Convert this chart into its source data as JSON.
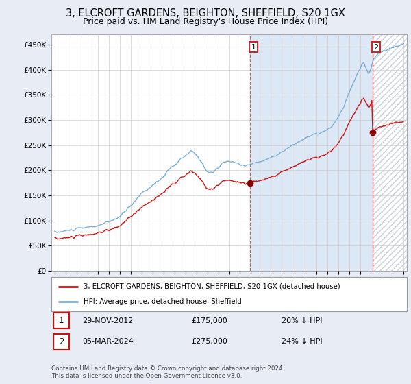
{
  "title": "3, ELCROFT GARDENS, BEIGHTON, SHEFFIELD, S20 1GX",
  "subtitle": "Price paid vs. HM Land Registry's House Price Index (HPI)",
  "title_fontsize": 10.5,
  "subtitle_fontsize": 9,
  "ylabel_ticks": [
    "£0",
    "£50K",
    "£100K",
    "£150K",
    "£200K",
    "£250K",
    "£300K",
    "£350K",
    "£400K",
    "£450K"
  ],
  "ytick_values": [
    0,
    50000,
    100000,
    150000,
    200000,
    250000,
    300000,
    350000,
    400000,
    450000
  ],
  "ylim": [
    0,
    470000
  ],
  "xlim_start": 1994.7,
  "xlim_end": 2027.3,
  "xticks": [
    1995,
    1996,
    1997,
    1998,
    1999,
    2000,
    2001,
    2002,
    2003,
    2004,
    2005,
    2006,
    2007,
    2008,
    2009,
    2010,
    2011,
    2012,
    2013,
    2014,
    2015,
    2016,
    2017,
    2018,
    2019,
    2020,
    2021,
    2022,
    2023,
    2024,
    2025,
    2026,
    2027
  ],
  "hpi_color": "#7aadd4",
  "price_color": "#cc1111",
  "vline_color": "#dd4444",
  "shade_color": "#dce8f5",
  "hatch_color": "#c8d0dc",
  "annotation_box_color": "#cc1111",
  "legend_house_label": "3, ELCROFT GARDENS, BEIGHTON, SHEFFIELD, S20 1GX (detached house)",
  "legend_hpi_label": "HPI: Average price, detached house, Sheffield",
  "note_1_label": "1",
  "note_1_date": "29-NOV-2012",
  "note_1_price": "£175,000",
  "note_1_hpi": "20% ↓ HPI",
  "note_2_label": "2",
  "note_2_date": "05-MAR-2024",
  "note_2_price": "£275,000",
  "note_2_hpi": "24% ↓ HPI",
  "copyright_text": "Contains HM Land Registry data © Crown copyright and database right 2024.\nThis data is licensed under the Open Government Licence v3.0.",
  "bg_color": "#e8edf5",
  "plot_bg_color": "#ffffff",
  "grid_color": "#cccccc",
  "sale1_year": 2012.92,
  "sale1_price": 175000,
  "sale2_year": 2024.18,
  "sale2_price": 275000,
  "hpi_start_year": 1995.0,
  "hpi_end_year": 2027.0,
  "n_points": 385
}
